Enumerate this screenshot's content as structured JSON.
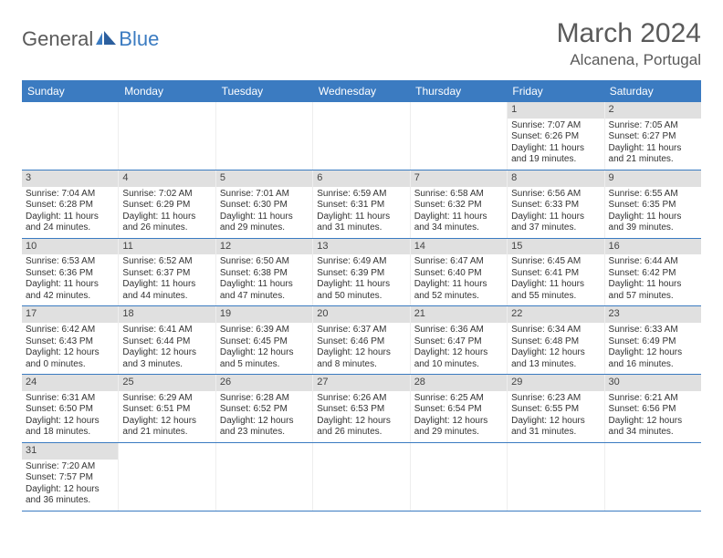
{
  "brand": {
    "text1": "General",
    "text2": "Blue"
  },
  "title": "March 2024",
  "location": "Alcanena, Portugal",
  "colors": {
    "header_bg": "#3b7bc1",
    "header_text": "#ffffff",
    "daynum_bg": "#e0e0e0",
    "text": "#333333",
    "border": "#3b7bc1"
  },
  "weekdays": [
    "Sunday",
    "Monday",
    "Tuesday",
    "Wednesday",
    "Thursday",
    "Friday",
    "Saturday"
  ],
  "weeks": [
    [
      {
        "n": "",
        "sr": "",
        "ss": "",
        "dl1": "",
        "dl2": ""
      },
      {
        "n": "",
        "sr": "",
        "ss": "",
        "dl1": "",
        "dl2": ""
      },
      {
        "n": "",
        "sr": "",
        "ss": "",
        "dl1": "",
        "dl2": ""
      },
      {
        "n": "",
        "sr": "",
        "ss": "",
        "dl1": "",
        "dl2": ""
      },
      {
        "n": "",
        "sr": "",
        "ss": "",
        "dl1": "",
        "dl2": ""
      },
      {
        "n": "1",
        "sr": "Sunrise: 7:07 AM",
        "ss": "Sunset: 6:26 PM",
        "dl1": "Daylight: 11 hours",
        "dl2": "and 19 minutes."
      },
      {
        "n": "2",
        "sr": "Sunrise: 7:05 AM",
        "ss": "Sunset: 6:27 PM",
        "dl1": "Daylight: 11 hours",
        "dl2": "and 21 minutes."
      }
    ],
    [
      {
        "n": "3",
        "sr": "Sunrise: 7:04 AM",
        "ss": "Sunset: 6:28 PM",
        "dl1": "Daylight: 11 hours",
        "dl2": "and 24 minutes."
      },
      {
        "n": "4",
        "sr": "Sunrise: 7:02 AM",
        "ss": "Sunset: 6:29 PM",
        "dl1": "Daylight: 11 hours",
        "dl2": "and 26 minutes."
      },
      {
        "n": "5",
        "sr": "Sunrise: 7:01 AM",
        "ss": "Sunset: 6:30 PM",
        "dl1": "Daylight: 11 hours",
        "dl2": "and 29 minutes."
      },
      {
        "n": "6",
        "sr": "Sunrise: 6:59 AM",
        "ss": "Sunset: 6:31 PM",
        "dl1": "Daylight: 11 hours",
        "dl2": "and 31 minutes."
      },
      {
        "n": "7",
        "sr": "Sunrise: 6:58 AM",
        "ss": "Sunset: 6:32 PM",
        "dl1": "Daylight: 11 hours",
        "dl2": "and 34 minutes."
      },
      {
        "n": "8",
        "sr": "Sunrise: 6:56 AM",
        "ss": "Sunset: 6:33 PM",
        "dl1": "Daylight: 11 hours",
        "dl2": "and 37 minutes."
      },
      {
        "n": "9",
        "sr": "Sunrise: 6:55 AM",
        "ss": "Sunset: 6:35 PM",
        "dl1": "Daylight: 11 hours",
        "dl2": "and 39 minutes."
      }
    ],
    [
      {
        "n": "10",
        "sr": "Sunrise: 6:53 AM",
        "ss": "Sunset: 6:36 PM",
        "dl1": "Daylight: 11 hours",
        "dl2": "and 42 minutes."
      },
      {
        "n": "11",
        "sr": "Sunrise: 6:52 AM",
        "ss": "Sunset: 6:37 PM",
        "dl1": "Daylight: 11 hours",
        "dl2": "and 44 minutes."
      },
      {
        "n": "12",
        "sr": "Sunrise: 6:50 AM",
        "ss": "Sunset: 6:38 PM",
        "dl1": "Daylight: 11 hours",
        "dl2": "and 47 minutes."
      },
      {
        "n": "13",
        "sr": "Sunrise: 6:49 AM",
        "ss": "Sunset: 6:39 PM",
        "dl1": "Daylight: 11 hours",
        "dl2": "and 50 minutes."
      },
      {
        "n": "14",
        "sr": "Sunrise: 6:47 AM",
        "ss": "Sunset: 6:40 PM",
        "dl1": "Daylight: 11 hours",
        "dl2": "and 52 minutes."
      },
      {
        "n": "15",
        "sr": "Sunrise: 6:45 AM",
        "ss": "Sunset: 6:41 PM",
        "dl1": "Daylight: 11 hours",
        "dl2": "and 55 minutes."
      },
      {
        "n": "16",
        "sr": "Sunrise: 6:44 AM",
        "ss": "Sunset: 6:42 PM",
        "dl1": "Daylight: 11 hours",
        "dl2": "and 57 minutes."
      }
    ],
    [
      {
        "n": "17",
        "sr": "Sunrise: 6:42 AM",
        "ss": "Sunset: 6:43 PM",
        "dl1": "Daylight: 12 hours",
        "dl2": "and 0 minutes."
      },
      {
        "n": "18",
        "sr": "Sunrise: 6:41 AM",
        "ss": "Sunset: 6:44 PM",
        "dl1": "Daylight: 12 hours",
        "dl2": "and 3 minutes."
      },
      {
        "n": "19",
        "sr": "Sunrise: 6:39 AM",
        "ss": "Sunset: 6:45 PM",
        "dl1": "Daylight: 12 hours",
        "dl2": "and 5 minutes."
      },
      {
        "n": "20",
        "sr": "Sunrise: 6:37 AM",
        "ss": "Sunset: 6:46 PM",
        "dl1": "Daylight: 12 hours",
        "dl2": "and 8 minutes."
      },
      {
        "n": "21",
        "sr": "Sunrise: 6:36 AM",
        "ss": "Sunset: 6:47 PM",
        "dl1": "Daylight: 12 hours",
        "dl2": "and 10 minutes."
      },
      {
        "n": "22",
        "sr": "Sunrise: 6:34 AM",
        "ss": "Sunset: 6:48 PM",
        "dl1": "Daylight: 12 hours",
        "dl2": "and 13 minutes."
      },
      {
        "n": "23",
        "sr": "Sunrise: 6:33 AM",
        "ss": "Sunset: 6:49 PM",
        "dl1": "Daylight: 12 hours",
        "dl2": "and 16 minutes."
      }
    ],
    [
      {
        "n": "24",
        "sr": "Sunrise: 6:31 AM",
        "ss": "Sunset: 6:50 PM",
        "dl1": "Daylight: 12 hours",
        "dl2": "and 18 minutes."
      },
      {
        "n": "25",
        "sr": "Sunrise: 6:29 AM",
        "ss": "Sunset: 6:51 PM",
        "dl1": "Daylight: 12 hours",
        "dl2": "and 21 minutes."
      },
      {
        "n": "26",
        "sr": "Sunrise: 6:28 AM",
        "ss": "Sunset: 6:52 PM",
        "dl1": "Daylight: 12 hours",
        "dl2": "and 23 minutes."
      },
      {
        "n": "27",
        "sr": "Sunrise: 6:26 AM",
        "ss": "Sunset: 6:53 PM",
        "dl1": "Daylight: 12 hours",
        "dl2": "and 26 minutes."
      },
      {
        "n": "28",
        "sr": "Sunrise: 6:25 AM",
        "ss": "Sunset: 6:54 PM",
        "dl1": "Daylight: 12 hours",
        "dl2": "and 29 minutes."
      },
      {
        "n": "29",
        "sr": "Sunrise: 6:23 AM",
        "ss": "Sunset: 6:55 PM",
        "dl1": "Daylight: 12 hours",
        "dl2": "and 31 minutes."
      },
      {
        "n": "30",
        "sr": "Sunrise: 6:21 AM",
        "ss": "Sunset: 6:56 PM",
        "dl1": "Daylight: 12 hours",
        "dl2": "and 34 minutes."
      }
    ],
    [
      {
        "n": "31",
        "sr": "Sunrise: 7:20 AM",
        "ss": "Sunset: 7:57 PM",
        "dl1": "Daylight: 12 hours",
        "dl2": "and 36 minutes."
      },
      {
        "n": "",
        "sr": "",
        "ss": "",
        "dl1": "",
        "dl2": ""
      },
      {
        "n": "",
        "sr": "",
        "ss": "",
        "dl1": "",
        "dl2": ""
      },
      {
        "n": "",
        "sr": "",
        "ss": "",
        "dl1": "",
        "dl2": ""
      },
      {
        "n": "",
        "sr": "",
        "ss": "",
        "dl1": "",
        "dl2": ""
      },
      {
        "n": "",
        "sr": "",
        "ss": "",
        "dl1": "",
        "dl2": ""
      },
      {
        "n": "",
        "sr": "",
        "ss": "",
        "dl1": "",
        "dl2": ""
      }
    ]
  ]
}
